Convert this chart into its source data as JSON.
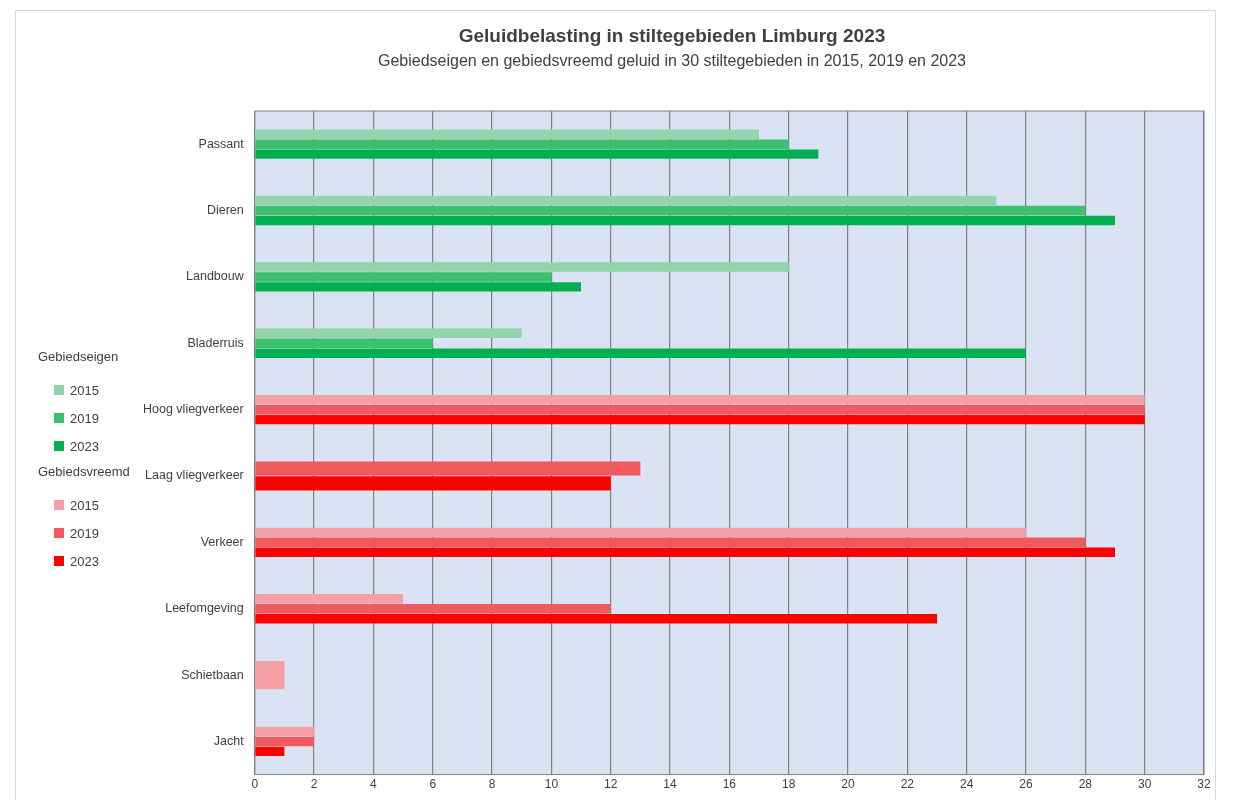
{
  "chart_data": {
    "type": "bar",
    "orientation": "horizontal",
    "title": "Geluidbelasting in stiltegebieden Limburg 2023",
    "subtitle": "Gebiedseigen en gebiedsvreemd geluid in 30 stiltegebieden in 2015, 2019 en 2023",
    "categories": [
      "Passant",
      "Dieren",
      "Landbouw",
      "Bladerruis",
      "Hoog vliegverkeer",
      "Laag vliegverkeer",
      "Verkeer",
      "Leefomgeving",
      "Schietbaan",
      "Jacht"
    ],
    "series": [
      {
        "name": "2015",
        "color": "#92d5ac",
        "values": [
          17,
          25,
          18,
          9,
          null,
          null,
          null,
          null,
          null,
          null
        ]
      },
      {
        "name": "2019",
        "color": "#3cc070",
        "values": [
          18,
          28,
          10,
          6,
          null,
          null,
          null,
          null,
          null,
          null
        ]
      },
      {
        "name": "2023",
        "color": "#00b050",
        "values": [
          19,
          29,
          11,
          26,
          null,
          null,
          null,
          null,
          null,
          null
        ]
      },
      {
        "name": "2015",
        "color": "#f4a0a6",
        "values": [
          null,
          null,
          null,
          null,
          30,
          null,
          26,
          5,
          1,
          2
        ]
      },
      {
        "name": "2019",
        "color": "#f05a5e",
        "values": [
          null,
          null,
          null,
          null,
          30,
          13,
          28,
          12,
          null,
          2
        ]
      },
      {
        "name": "2023",
        "color": "#ff0000",
        "values": [
          null,
          null,
          null,
          null,
          30,
          12,
          29,
          23,
          null,
          1
        ]
      }
    ],
    "annotations": [
      "Gebiedseigen",
      "Gebiedsvreemd"
    ],
    "xlim": [
      0,
      32
    ],
    "xticks": [
      0,
      2,
      4,
      6,
      8,
      10,
      12,
      14,
      16,
      18,
      20,
      22,
      24,
      26,
      28,
      30,
      32
    ],
    "grid": "x",
    "legend": "left"
  }
}
